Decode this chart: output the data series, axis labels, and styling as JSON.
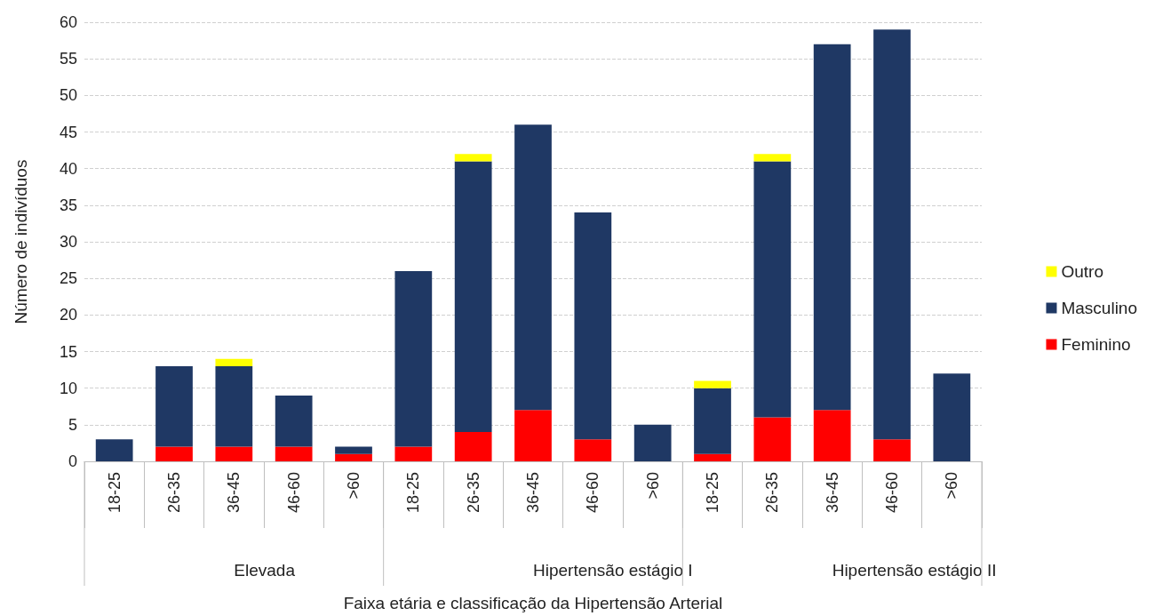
{
  "chart_data": {
    "type": "bar",
    "stacked": true,
    "xlabel": "Faixa etária e classificação da Hipertensão Arterial",
    "ylabel": "Número de indivíduos",
    "categories": [
      "18-25",
      "26-35",
      "36-45",
      "46-60",
      ">60",
      "18-25",
      "26-35",
      "36-45",
      "46-60",
      ">60",
      "18-25",
      "26-35",
      "36-45",
      "46-60",
      ">60"
    ],
    "annotations": [
      "Elevada",
      "Hipertensão estágio I",
      "Hipertensão estágio II"
    ],
    "series": [
      {
        "name": "Feminino",
        "color": "#ff0000",
        "values": [
          0,
          2,
          2,
          2,
          1,
          2,
          4,
          7,
          3,
          0,
          1,
          6,
          7,
          3,
          0
        ]
      },
      {
        "name": "Masculino",
        "color": "#1f3864",
        "values": [
          3,
          11,
          11,
          7,
          1,
          24,
          37,
          39,
          31,
          5,
          9,
          35,
          50,
          56,
          12
        ]
      },
      {
        "name": "Outro",
        "color": "#ffff00",
        "values": [
          0,
          0,
          1,
          0,
          0,
          0,
          1,
          0,
          0,
          0,
          1,
          1,
          0,
          0,
          0
        ]
      }
    ],
    "ylim": [
      0,
      60
    ],
    "yticks": [
      0,
      5,
      10,
      15,
      20,
      25,
      30,
      35,
      40,
      45,
      50,
      55,
      60
    ],
    "grid": "y",
    "legend": "right"
  }
}
